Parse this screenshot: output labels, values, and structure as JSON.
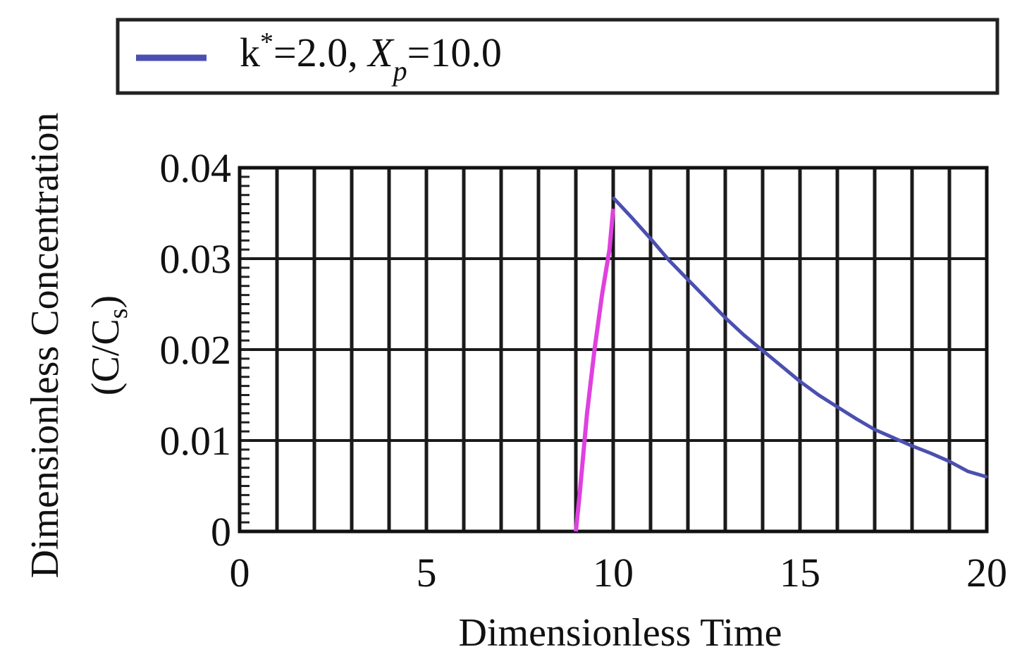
{
  "chart_data": {
    "type": "line",
    "xlabel": "Dimensionless Time",
    "ylabel_line1": "Dimensionless Concentration",
    "ylabel_line2_prefix": "(C/C",
    "ylabel_line2_sub": "s",
    "ylabel_line2_suffix": ")",
    "xlim": [
      0,
      20
    ],
    "ylim": [
      0,
      0.04
    ],
    "x_ticks": [
      "0",
      "5",
      "10",
      "15",
      "20"
    ],
    "y_ticks": [
      "0",
      "0.01",
      "0.02",
      "0.03",
      "0.04"
    ],
    "grid": true,
    "legend": {
      "placement": "top",
      "prefix": "k",
      "sup": "*",
      "mid": "=2.0, ",
      "var": "X",
      "sub": "p",
      "suffix": "=10.0"
    },
    "series": [
      {
        "name": "k*=2.0, Xp=10.0",
        "color": "#4b4fb0",
        "rise_color": "#e040e0",
        "rise_x": [
          9.0,
          9.1,
          9.3,
          9.5,
          9.7,
          9.9,
          10.0
        ],
        "rise_y": [
          0.0,
          0.004,
          0.013,
          0.02,
          0.026,
          0.031,
          0.0355
        ],
        "x": [
          10.0,
          10.5,
          11.0,
          11.5,
          12.0,
          12.5,
          13.0,
          13.5,
          14.0,
          14.5,
          15.0,
          15.5,
          16.0,
          16.5,
          17.0,
          17.5,
          18.0,
          18.5,
          19.0,
          19.5,
          20.0
        ],
        "y": [
          0.0367,
          0.0345,
          0.0322,
          0.0298,
          0.0277,
          0.0256,
          0.0235,
          0.0216,
          0.0199,
          0.0182,
          0.0165,
          0.015,
          0.0137,
          0.0124,
          0.0112,
          0.0103,
          0.0094,
          0.0086,
          0.0077,
          0.0066,
          0.006
        ]
      }
    ]
  }
}
